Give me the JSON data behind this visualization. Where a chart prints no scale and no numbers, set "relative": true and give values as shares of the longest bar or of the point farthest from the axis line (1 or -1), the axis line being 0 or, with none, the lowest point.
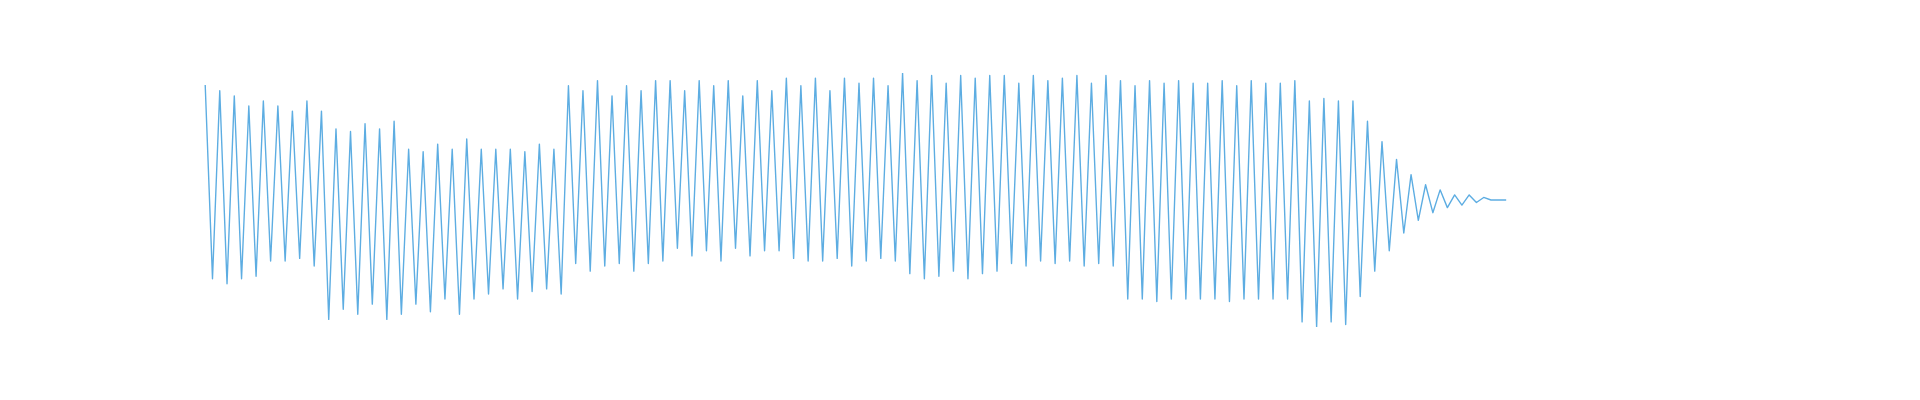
{
  "chart_data": {
    "type": "line",
    "relative": true,
    "color": "#5dade2",
    "categories": [
      null,
      null,
      null,
      null,
      null,
      null,
      null,
      null,
      null,
      null,
      null,
      null,
      null,
      null,
      null,
      null,
      null,
      null,
      null,
      null,
      null,
      null,
      null,
      null,
      null,
      null,
      null,
      null,
      null,
      null,
      null,
      null,
      null,
      null,
      null,
      null,
      null,
      null,
      null,
      null,
      null,
      null,
      null,
      null,
      null,
      null,
      null,
      null,
      null,
      null,
      null,
      null,
      null,
      null,
      null,
      null,
      null,
      null,
      null,
      null,
      null,
      null,
      null,
      null,
      null,
      null,
      null,
      null,
      null,
      null,
      null,
      null,
      null,
      null,
      null,
      null,
      null,
      null,
      null,
      null,
      null,
      null,
      null,
      null,
      null,
      null,
      null,
      null,
      null,
      null,
      null,
      null,
      null,
      null,
      null,
      null,
      null,
      null,
      null,
      null,
      null,
      null,
      null,
      null,
      null,
      null,
      null,
      null,
      null,
      null,
      null,
      null,
      null,
      null,
      null,
      null,
      null,
      null,
      null,
      null,
      null,
      null,
      null,
      null,
      null,
      null,
      null,
      null,
      null,
      null,
      null,
      null,
      null,
      null,
      null,
      null,
      null,
      null,
      null,
      null,
      null,
      null,
      null,
      null,
      null,
      null,
      null,
      null,
      null,
      null,
      null,
      null,
      null,
      null,
      null,
      null,
      null,
      null,
      null,
      null,
      null,
      null,
      null,
      null,
      null,
      null,
      null,
      null,
      null,
      null,
      null,
      null,
      null,
      null,
      null,
      null,
      null,
      null,
      null,
      null
    ],
    "values": [
      0.95,
      0.19,
      0.93,
      0.17,
      0.91,
      0.19,
      0.87,
      0.2,
      0.89,
      0.26,
      0.87,
      0.26,
      0.85,
      0.27,
      0.89,
      0.24,
      0.85,
      0.03,
      0.78,
      0.07,
      0.77,
      0.05,
      0.8,
      0.09,
      0.78,
      0.03,
      0.81,
      0.05,
      0.7,
      0.09,
      0.69,
      0.06,
      0.72,
      0.11,
      0.7,
      0.05,
      0.74,
      0.11,
      0.7,
      0.13,
      0.7,
      0.15,
      0.7,
      0.11,
      0.69,
      0.14,
      0.72,
      0.15,
      0.7,
      0.13,
      0.95,
      0.25,
      0.93,
      0.22,
      0.97,
      0.24,
      0.91,
      0.25,
      0.95,
      0.22,
      0.93,
      0.25,
      0.97,
      0.26,
      0.97,
      0.31,
      0.93,
      0.28,
      0.97,
      0.3,
      0.95,
      0.26,
      0.97,
      0.31,
      0.91,
      0.28,
      0.97,
      0.3,
      0.93,
      0.3,
      0.98,
      0.27,
      0.95,
      0.26,
      0.98,
      0.26,
      0.93,
      0.27,
      0.98,
      0.24,
      0.96,
      0.26,
      0.98,
      0.27,
      0.95,
      0.26,
      1.0,
      0.21,
      0.97,
      0.19,
      0.99,
      0.2,
      0.96,
      0.22,
      0.99,
      0.19,
      0.98,
      0.21,
      0.99,
      0.22,
      0.99,
      0.25,
      0.96,
      0.24,
      0.99,
      0.26,
      0.97,
      0.25,
      0.98,
      0.26,
      0.99,
      0.24,
      0.96,
      0.25,
      0.99,
      0.24,
      0.97,
      0.11,
      0.95,
      0.11,
      0.97,
      0.1,
      0.96,
      0.11,
      0.97,
      0.11,
      0.96,
      0.11,
      0.96,
      0.11,
      0.97,
      0.1,
      0.95,
      0.11,
      0.97,
      0.11,
      0.96,
      0.11,
      0.96,
      0.11,
      0.97,
      0.02,
      0.89,
      0.0,
      0.9,
      0.02,
      0.89,
      0.01,
      0.89,
      0.12,
      0.81,
      0.22,
      0.73,
      0.3,
      0.66,
      0.37,
      0.6,
      0.42,
      0.56,
      0.45,
      0.54,
      0.47,
      0.52,
      0.48,
      0.52,
      0.49,
      0.51,
      0.5,
      0.5,
      0.5
    ]
  }
}
